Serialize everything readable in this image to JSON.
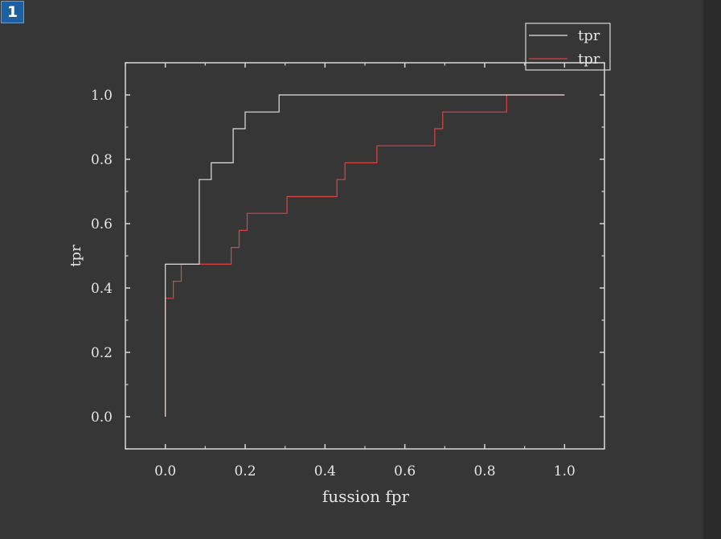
{
  "page_badge": "1",
  "colors": {
    "background": "#363636",
    "axis": "#d8d8d8",
    "series_white": "#e0e0e0",
    "series_red": "#d94545"
  },
  "chart_data": {
    "type": "line",
    "title": "",
    "xlabel": "fussion fpr",
    "ylabel": "tpr",
    "xlim": [
      -0.1,
      1.1
    ],
    "ylim": [
      -0.1,
      1.1
    ],
    "xticks": [
      "0.0",
      "0.2",
      "0.4",
      "0.6",
      "0.8",
      "1.0"
    ],
    "yticks": [
      "0.0",
      "0.2",
      "0.4",
      "0.6",
      "0.8",
      "1.0"
    ],
    "legend_position": "top-right",
    "series": [
      {
        "name": "tpr",
        "color": "#e0e0e0",
        "step": "post",
        "x": [
          0.0,
          0.0,
          0.0,
          0.085,
          0.085,
          0.115,
          0.115,
          0.17,
          0.17,
          0.2,
          0.2,
          0.285,
          0.285,
          1.0
        ],
        "y": [
          0.0,
          0.368,
          0.474,
          0.474,
          0.737,
          0.737,
          0.789,
          0.789,
          0.895,
          0.895,
          0.947,
          0.947,
          1.0,
          1.0
        ]
      },
      {
        "name": "tpr",
        "color": "#d94545",
        "step": "post",
        "x": [
          0.0,
          0.0,
          0.02,
          0.02,
          0.04,
          0.04,
          0.165,
          0.165,
          0.185,
          0.185,
          0.205,
          0.205,
          0.305,
          0.305,
          0.43,
          0.43,
          0.45,
          0.45,
          0.53,
          0.53,
          0.675,
          0.675,
          0.695,
          0.695,
          0.855,
          0.855,
          1.0
        ],
        "y": [
          0.0,
          0.368,
          0.368,
          0.421,
          0.421,
          0.474,
          0.474,
          0.526,
          0.526,
          0.579,
          0.579,
          0.632,
          0.632,
          0.684,
          0.684,
          0.737,
          0.737,
          0.789,
          0.789,
          0.842,
          0.842,
          0.895,
          0.895,
          0.947,
          0.947,
          1.0,
          1.0
        ]
      }
    ]
  }
}
